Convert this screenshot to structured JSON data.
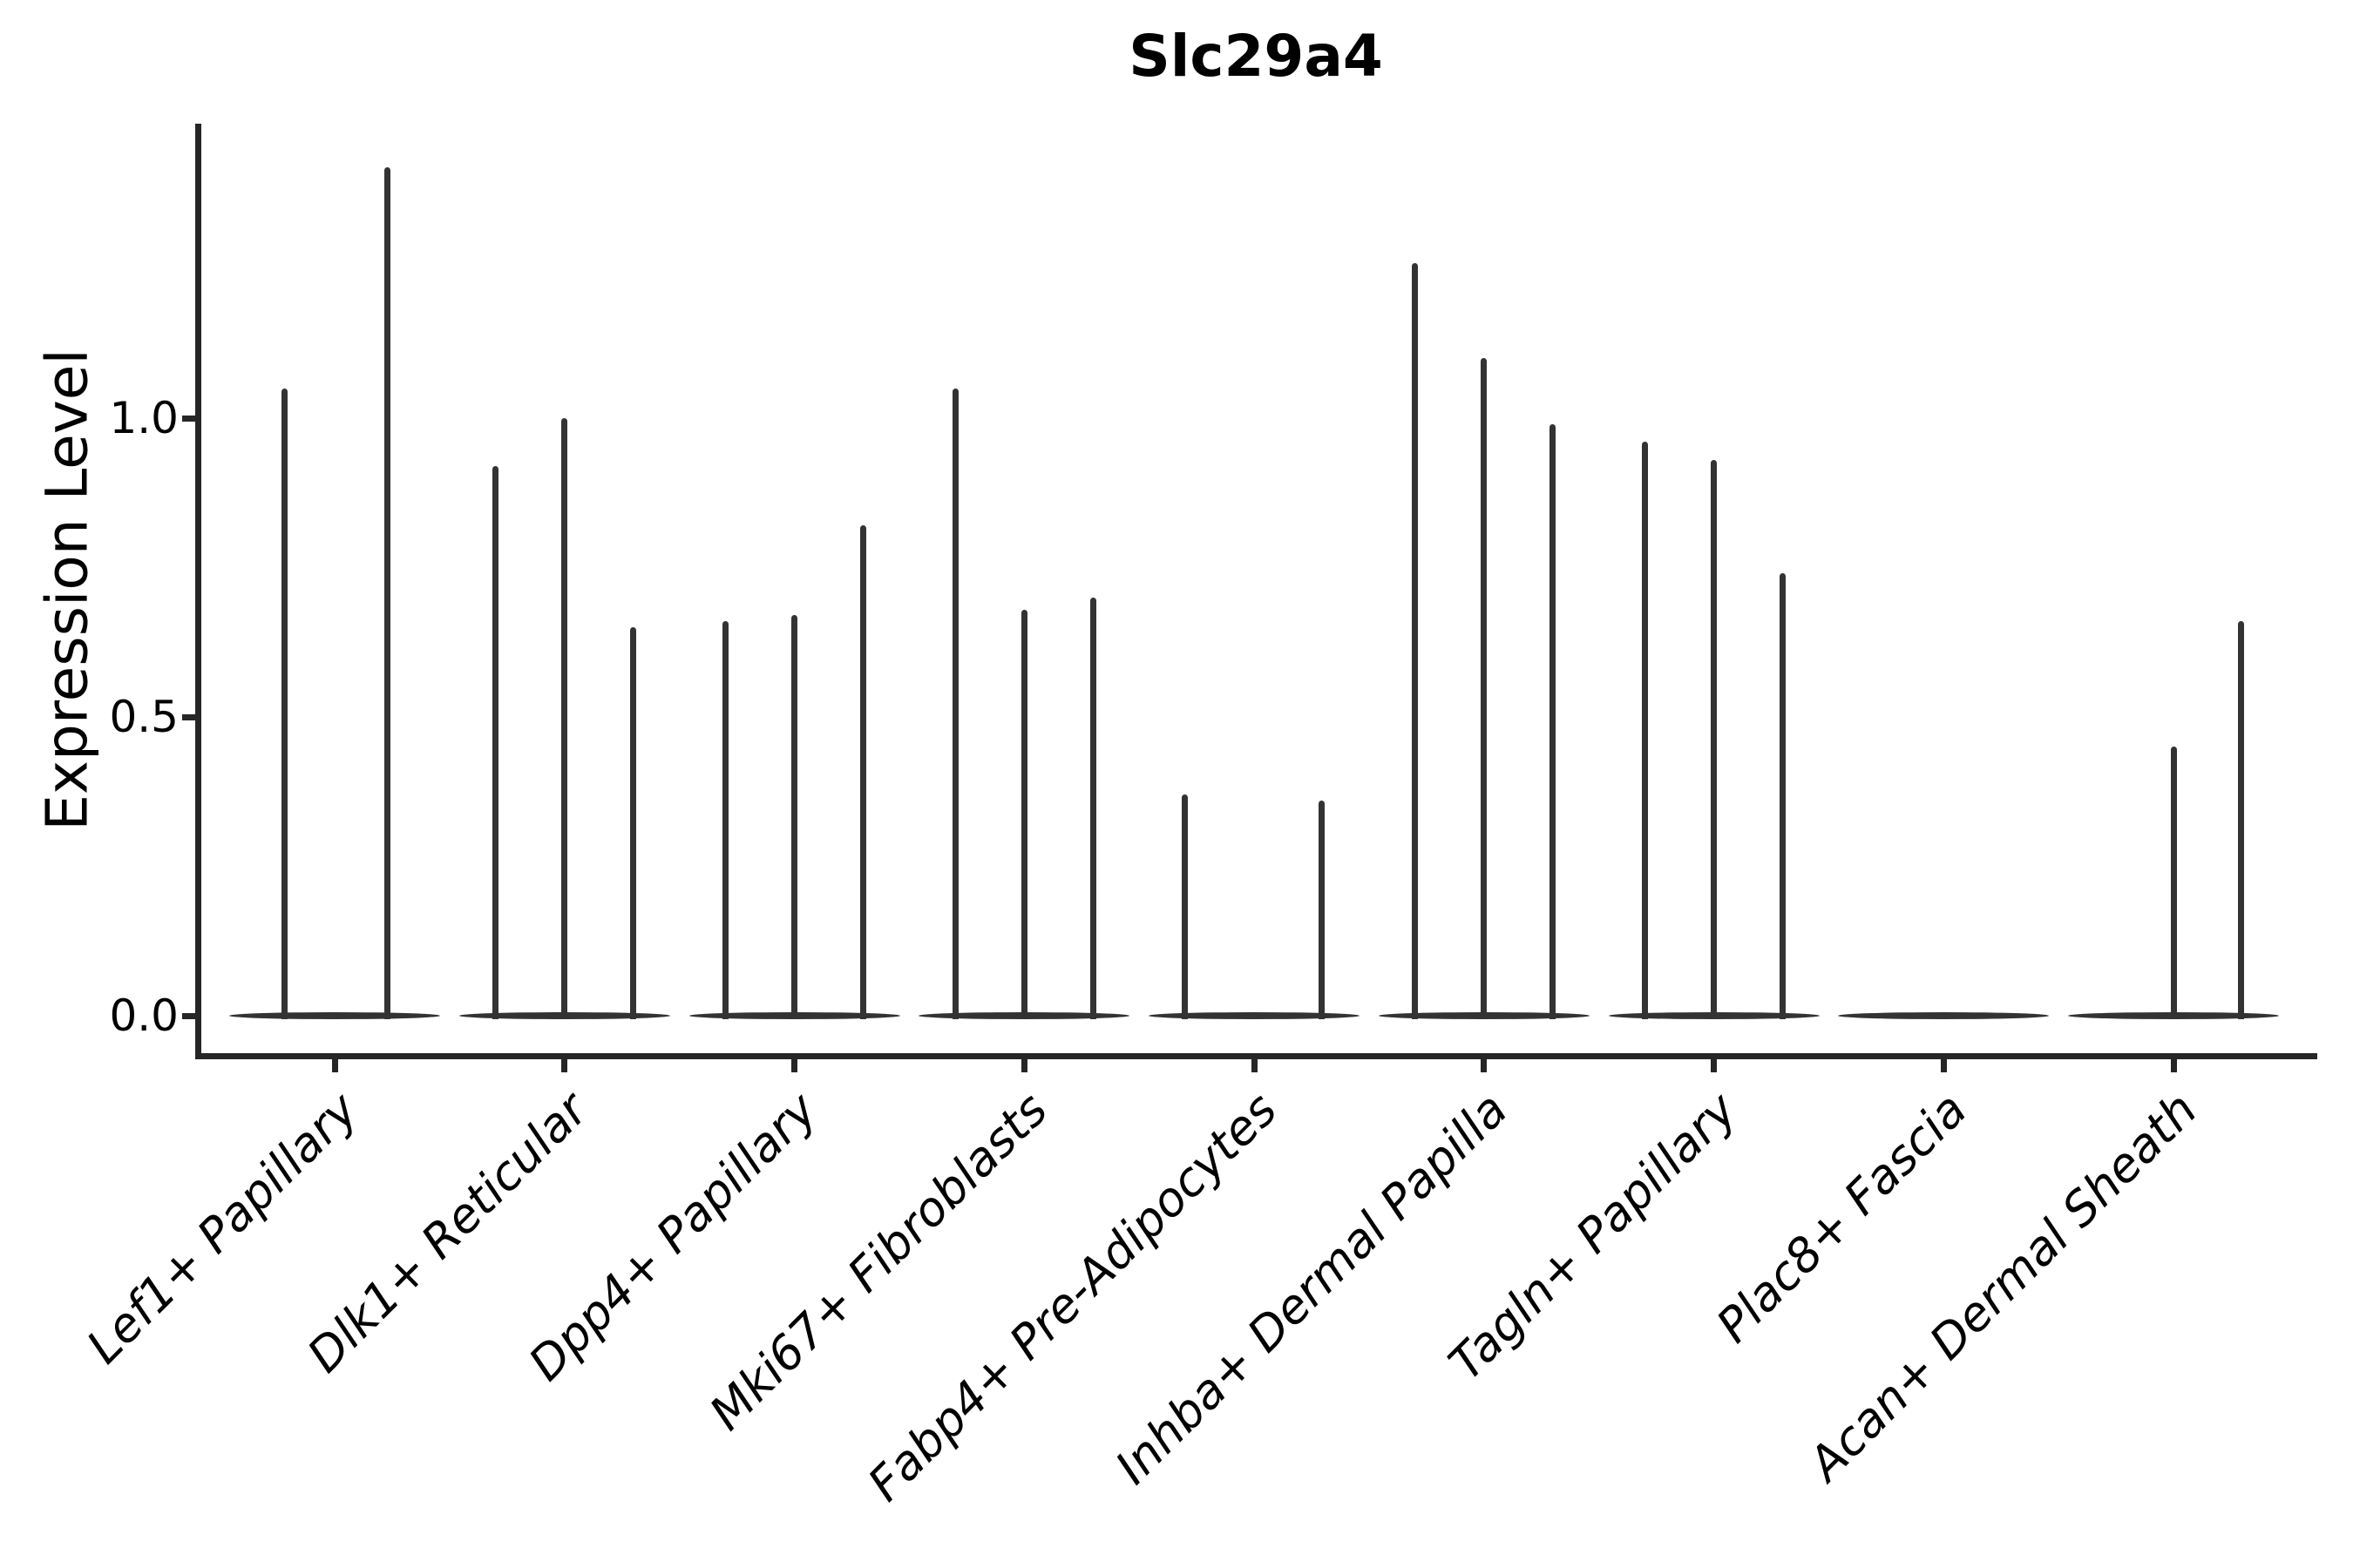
{
  "title": {
    "text": "Slc29a4"
  },
  "y_axis": {
    "label": "Expression Level",
    "tick_labels": [
      "0.0",
      "0.5",
      "1.0"
    ]
  },
  "chart_data": {
    "type": "violin",
    "title": "Slc29a4",
    "xlabel": "",
    "ylabel": "Expression Level",
    "ylim": [
      -0.07,
      1.49
    ],
    "yticks": [
      0.0,
      0.5,
      1.0
    ],
    "ytick_labels": [
      "0.0",
      "0.5",
      "1.0"
    ],
    "grid": false,
    "legend": "none",
    "axis_color": "#262626",
    "violin_color": "#333333",
    "text_color": "#000000",
    "background_color": "#ffffff",
    "categories": [
      "Lef1+ Papillary",
      "Dlk1+ Reticular",
      "Dpp4+ Papillary",
      "Mki67+ Fibroblasts",
      "Fabp4+ Pre-Adipocytes",
      "Inhba+ Dermal Papilla",
      "Tagln+ Papillary",
      "Plac8+ Fascia",
      "Acan+ Dermal Sheath"
    ],
    "groups": [
      {
        "category": "Lef1+ Papillary",
        "violins": [
          {
            "dx": -58,
            "max": 1.05
          },
          {
            "dx": 60,
            "max": 1.42
          }
        ]
      },
      {
        "category": "Dlk1+ Reticular",
        "violins": [
          {
            "dx": -79,
            "max": 0.92
          },
          {
            "dx": 0,
            "max": 1.0
          },
          {
            "dx": 79,
            "max": 0.65
          }
        ]
      },
      {
        "category": "Dpp4+ Papillary",
        "violins": [
          {
            "dx": -79,
            "max": 0.66
          },
          {
            "dx": 0,
            "max": 0.67
          },
          {
            "dx": 79,
            "max": 0.82
          }
        ]
      },
      {
        "category": "Mki67+ Fibroblasts",
        "violins": [
          {
            "dx": -79,
            "max": 1.05
          },
          {
            "dx": 0,
            "max": 0.68
          },
          {
            "dx": 79,
            "max": 0.7
          }
        ]
      },
      {
        "category": "Fabp4+ Pre-Adipocytes",
        "violins": [
          {
            "dx": -80,
            "max": 0.37
          },
          {
            "dx": 77,
            "max": 0.36
          }
        ]
      },
      {
        "category": "Inhba+ Dermal Papilla",
        "violins": [
          {
            "dx": -79,
            "max": 1.26
          },
          {
            "dx": 0,
            "max": 1.1
          },
          {
            "dx": 79,
            "max": 0.99
          }
        ]
      },
      {
        "category": "Tagln+ Papillary",
        "violins": [
          {
            "dx": -79,
            "max": 0.96
          },
          {
            "dx": 0,
            "max": 0.93
          },
          {
            "dx": 79,
            "max": 0.74
          }
        ]
      },
      {
        "category": "Plac8+ Fascia",
        "violins": []
      },
      {
        "category": "Acan+ Dermal Sheath",
        "violins": [
          {
            "dx": 0,
            "max": 0.45
          },
          {
            "dx": 77,
            "max": 0.66
          }
        ]
      }
    ]
  }
}
